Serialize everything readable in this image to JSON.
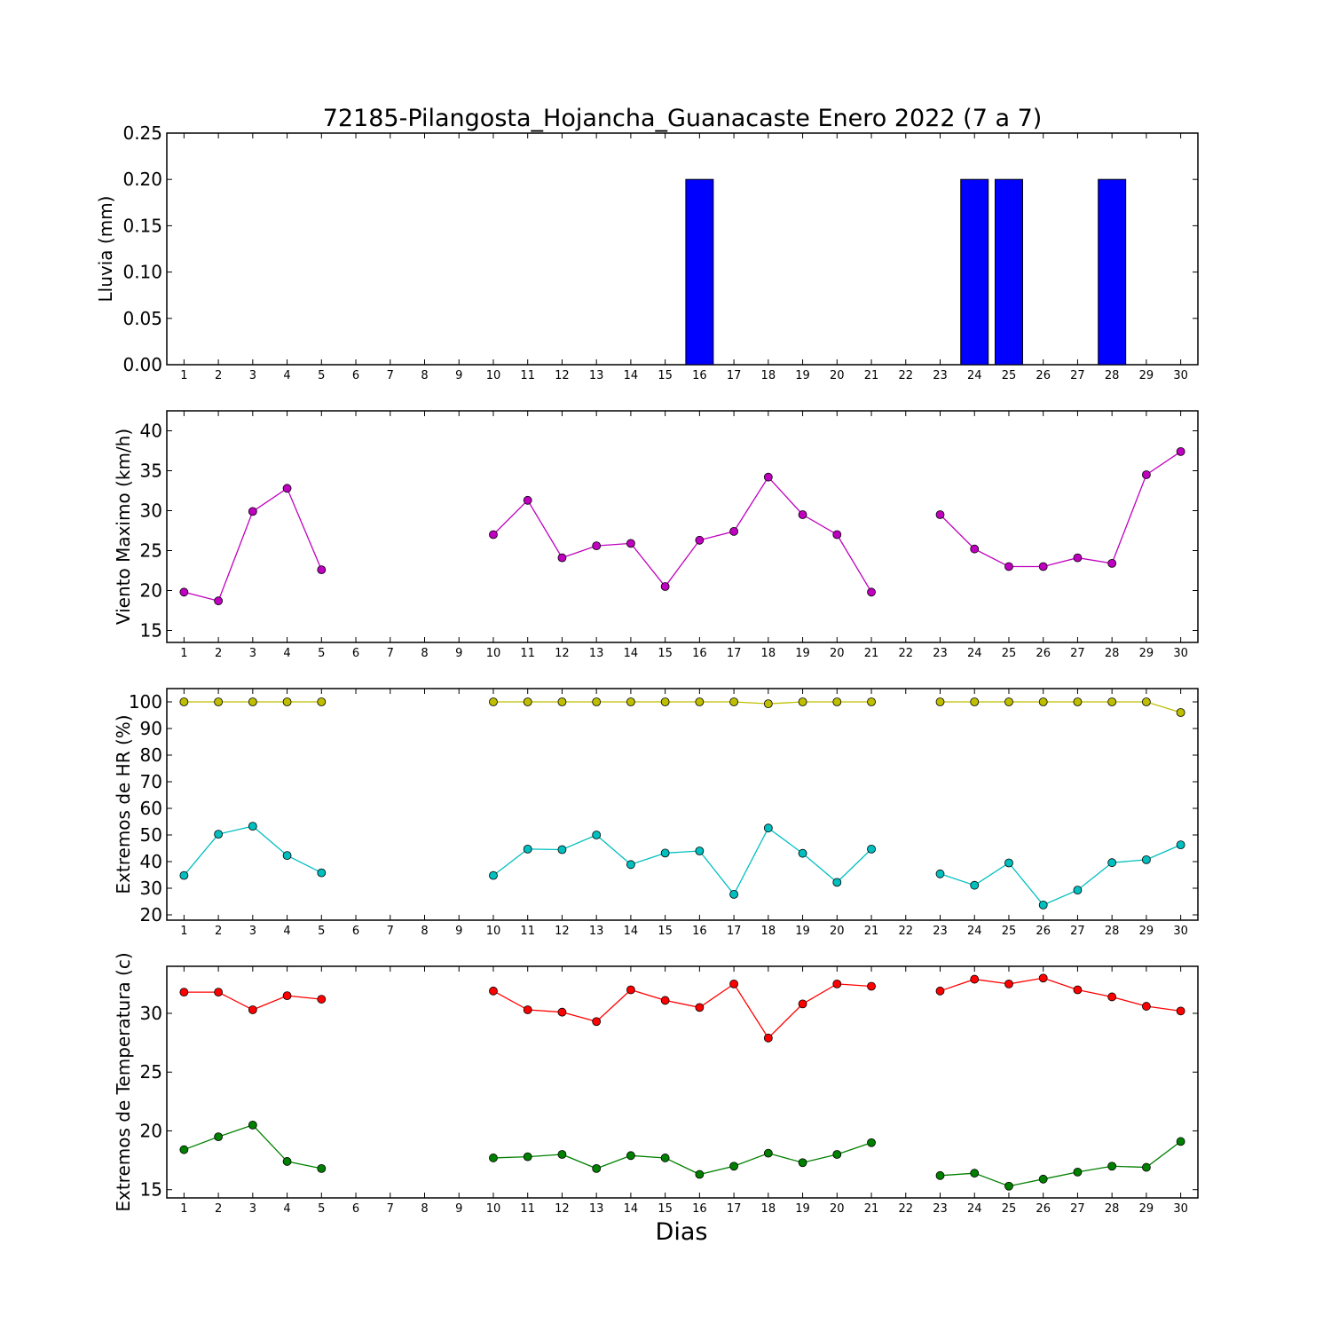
{
  "title": "72185-Pilangosta_Hojancha_Guanacaste Enero 2022  (7 a 7)",
  "xlabel": "Dias",
  "chart_data": [
    {
      "type": "bar",
      "ylabel": "Lluvia (mm)",
      "ylim": [
        0,
        0.25
      ],
      "yticks": [
        "0.00",
        "0.05",
        "0.10",
        "0.15",
        "0.20",
        "0.25"
      ],
      "categories": [
        1,
        2,
        3,
        4,
        5,
        6,
        7,
        8,
        9,
        10,
        11,
        12,
        13,
        14,
        15,
        16,
        17,
        18,
        19,
        20,
        21,
        22,
        23,
        24,
        25,
        26,
        27,
        28,
        29,
        30
      ],
      "series": [
        {
          "color": "#0000ff",
          "values": [
            0,
            0,
            0,
            0,
            0,
            null,
            null,
            null,
            null,
            0,
            0,
            0,
            0,
            0,
            0,
            0.2,
            0,
            0,
            0,
            0,
            0,
            null,
            0,
            0.2,
            0.2,
            0,
            0,
            0.2,
            0,
            0
          ]
        }
      ]
    },
    {
      "type": "line",
      "ylabel": "Viento Maximo (km/h)",
      "ylim": [
        13.5,
        42.5
      ],
      "yticks": [
        "15",
        "20",
        "25",
        "30",
        "35",
        "40"
      ],
      "x": [
        1,
        2,
        3,
        4,
        5,
        6,
        7,
        8,
        9,
        10,
        11,
        12,
        13,
        14,
        15,
        16,
        17,
        18,
        19,
        20,
        21,
        22,
        23,
        24,
        25,
        26,
        27,
        28,
        29,
        30
      ],
      "series": [
        {
          "color": "#bf00bf",
          "values": [
            19.8,
            18.7,
            29.9,
            32.8,
            22.6,
            null,
            null,
            null,
            null,
            27.0,
            31.3,
            24.1,
            25.6,
            25.9,
            20.5,
            26.3,
            27.4,
            34.2,
            29.5,
            27.0,
            19.8,
            null,
            29.5,
            25.2,
            23.0,
            23.0,
            24.1,
            23.4,
            34.5,
            37.4
          ]
        }
      ]
    },
    {
      "type": "line",
      "ylabel": "Extremos de HR (%)",
      "ylim": [
        18,
        105
      ],
      "yticks": [
        "20",
        "30",
        "40",
        "50",
        "60",
        "70",
        "80",
        "90",
        "100"
      ],
      "x": [
        1,
        2,
        3,
        4,
        5,
        6,
        7,
        8,
        9,
        10,
        11,
        12,
        13,
        14,
        15,
        16,
        17,
        18,
        19,
        20,
        21,
        22,
        23,
        24,
        25,
        26,
        27,
        28,
        29,
        30
      ],
      "series": [
        {
          "color": "#bfbf00",
          "values": [
            100,
            100,
            100,
            100,
            100,
            null,
            null,
            null,
            null,
            100,
            100,
            100,
            100,
            100,
            100,
            100,
            100,
            99.3,
            100,
            100,
            100,
            null,
            100,
            100,
            100,
            100,
            100,
            100,
            100,
            96
          ]
        },
        {
          "color": "#00bfbf",
          "values": [
            34.8,
            50.3,
            53.3,
            42.3,
            35.8,
            null,
            null,
            null,
            null,
            34.8,
            44.7,
            44.5,
            50.0,
            38.9,
            43.2,
            44.0,
            27.7,
            52.6,
            43.1,
            32.2,
            44.7,
            null,
            35.4,
            31.1,
            39.5,
            23.7,
            29.3,
            39.6,
            40.7,
            46.3
          ]
        }
      ]
    },
    {
      "type": "line",
      "ylabel": "Extremos de Temperatura (c)",
      "ylim": [
        14.3,
        34
      ],
      "yticks": [
        "15",
        "20",
        "25",
        "30"
      ],
      "x": [
        1,
        2,
        3,
        4,
        5,
        6,
        7,
        8,
        9,
        10,
        11,
        12,
        13,
        14,
        15,
        16,
        17,
        18,
        19,
        20,
        21,
        22,
        23,
        24,
        25,
        26,
        27,
        28,
        29,
        30
      ],
      "series": [
        {
          "color": "#ff0000",
          "values": [
            31.8,
            31.8,
            30.3,
            31.5,
            31.2,
            null,
            null,
            null,
            null,
            31.9,
            30.3,
            30.1,
            29.3,
            32.0,
            31.1,
            30.5,
            32.5,
            27.9,
            30.8,
            32.5,
            32.3,
            null,
            31.9,
            32.9,
            32.5,
            33.0,
            32.0,
            31.4,
            30.6,
            30.2
          ]
        },
        {
          "color": "#008000",
          "values": [
            18.4,
            19.5,
            20.5,
            17.4,
            16.8,
            null,
            null,
            null,
            null,
            17.7,
            17.8,
            18.0,
            16.8,
            17.9,
            17.7,
            16.3,
            17.0,
            18.1,
            17.3,
            18.0,
            19.0,
            null,
            16.2,
            16.4,
            15.3,
            15.9,
            16.5,
            17.0,
            16.9,
            19.1
          ]
        }
      ]
    }
  ]
}
